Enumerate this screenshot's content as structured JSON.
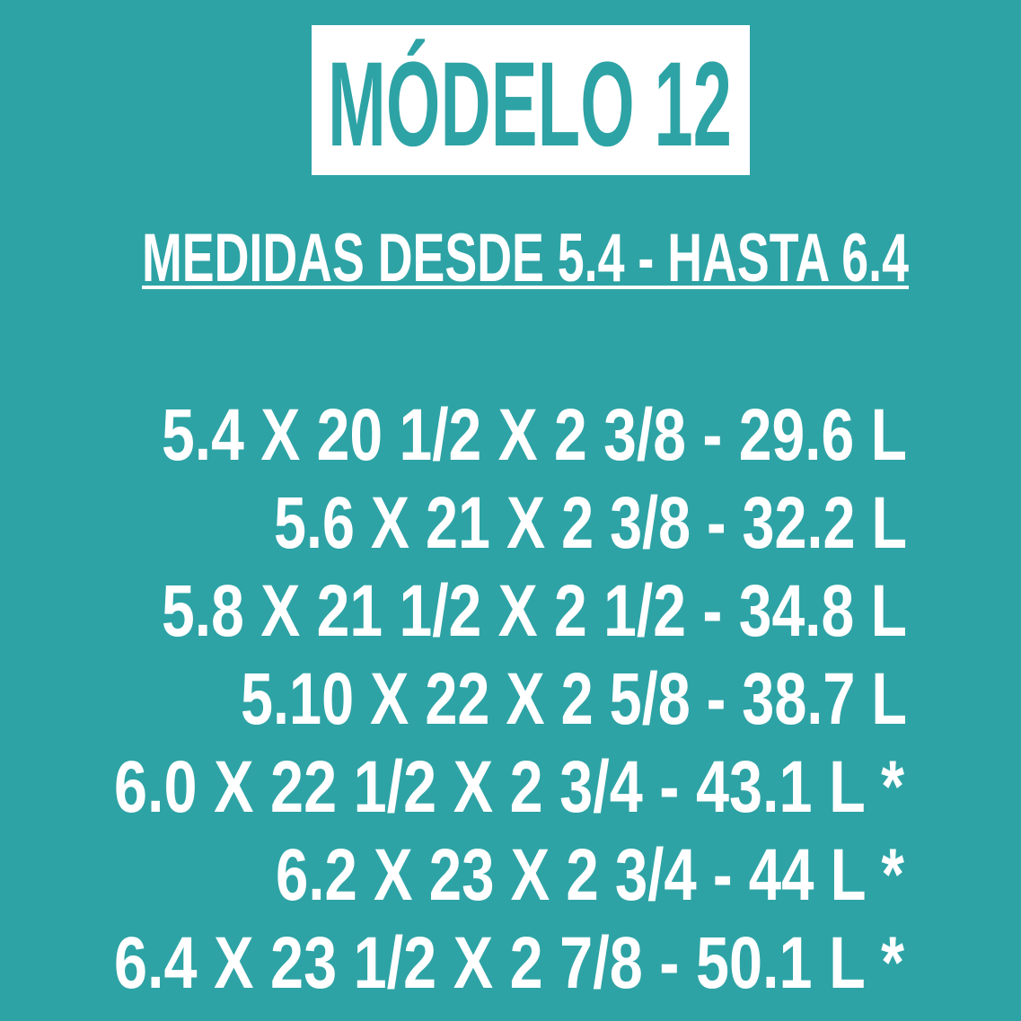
{
  "title": "MÓDELO 12",
  "subtitle": "MEDIDAS DESDE 5.4 - HASTA 6.4",
  "sizes": [
    "5.4 X 20 1/2 X 2 3/8 - 29.6 L",
    "5.6 X 21 X 2 3/8 - 32.2 L",
    "5.8 X 21 1/2 X 2 1/2 - 34.8 L",
    "5.10 X 22 X 2 5/8 - 38.7 L",
    "6.0 X 22 1/2 X 2 3/4 - 43.1 L *",
    "6.2 X 23 X 2 3/4 - 44 L *",
    "6.4 X 23 1/2 X 2 7/8 - 50.1 L *"
  ]
}
